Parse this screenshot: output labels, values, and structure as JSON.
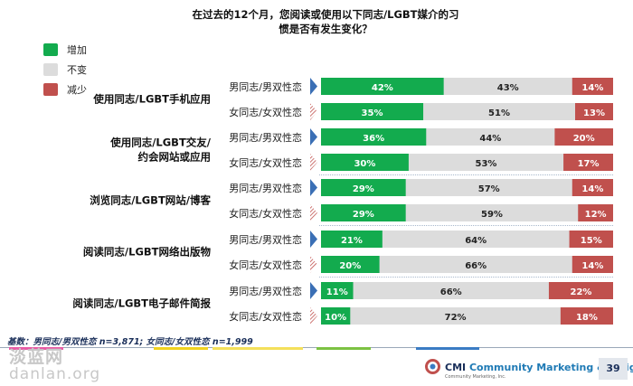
{
  "title_lines": [
    "在过去的12个月，您阅读或使用以下同志/LGBT媒介的习",
    "惯是否有发生变化？"
  ],
  "legend": [
    {
      "label": "增加",
      "color": "#13ab4e"
    },
    {
      "label": "不变",
      "color": "#dcdcdc"
    },
    {
      "label": "减少",
      "color": "#c0504d"
    }
  ],
  "chart_data": {
    "type": "bar",
    "stacked": true,
    "orientation": "horizontal",
    "percent_scale": [
      0,
      100
    ],
    "series": [
      {
        "name": "增加",
        "color": "#13ab4e"
      },
      {
        "name": "不变",
        "color": "#dcdcdc"
      },
      {
        "name": "减少",
        "color": "#c0504d"
      }
    ],
    "groups": [
      {
        "label": "使用同志/LGBT手机应用",
        "rows": [
          {
            "label": "男同志/男双性恋",
            "values": [
              42,
              43,
              14
            ],
            "value_labels": [
              "42%",
              "43%",
              "14%"
            ]
          },
          {
            "label": "女同志/女双性恋",
            "values": [
              35,
              51,
              13
            ],
            "value_labels": [
              "35%",
              "51%",
              "13%"
            ]
          }
        ]
      },
      {
        "label": "使用同志/LGBT交友/约会网站或应用",
        "label_lines": [
          "使用同志/LGBT交友/",
          "约会网站或应用"
        ],
        "rows": [
          {
            "label": "男同志/男双性恋",
            "values": [
              36,
              44,
              20
            ],
            "value_labels": [
              "36%",
              "44%",
              "20%"
            ]
          },
          {
            "label": "女同志/女双性恋",
            "values": [
              30,
              53,
              17
            ],
            "value_labels": [
              "30%",
              "53%",
              "17%"
            ]
          }
        ]
      },
      {
        "label": "浏览同志/LGBT网站/博客",
        "rows": [
          {
            "label": "男同志/男双性恋",
            "values": [
              29,
              57,
              14
            ],
            "value_labels": [
              "29%",
              "57%",
              "14%"
            ]
          },
          {
            "label": "女同志/女双性恋",
            "values": [
              29,
              59,
              12
            ],
            "value_labels": [
              "29%",
              "59%",
              "12%"
            ]
          }
        ]
      },
      {
        "label": "阅读同志/LGBT网络出版物",
        "rows": [
          {
            "label": "男同志/男双性恋",
            "values": [
              21,
              64,
              15
            ],
            "value_labels": [
              "21%",
              "64%",
              "15%"
            ]
          },
          {
            "label": "女同志/女双性恋",
            "values": [
              20,
              66,
              14
            ],
            "value_labels": [
              "20%",
              "66%",
              "14%"
            ]
          }
        ]
      },
      {
        "label": "阅读同志/LGBT电子邮件简报",
        "rows": [
          {
            "label": "男同志/男双性恋",
            "values": [
              11,
              66,
              22
            ],
            "value_labels": [
              "11%",
              "66%",
              "22%"
            ]
          },
          {
            "label": "女同志/女双性恋",
            "values": [
              10,
              72,
              18
            ],
            "value_labels": [
              "10%",
              "72%",
              "18%"
            ]
          }
        ]
      }
    ]
  },
  "base_note": "基数：男同志/男双性恋 n=3,871; 女同志/女双性恋 n=1,999",
  "watermark_lines": [
    "淡蓝网",
    "danlan.org"
  ],
  "footer": {
    "logo_text_cmi": "CMI",
    "logo_text_rest": " Community Marketing & Insights",
    "logo_sub": "Community Marketing, Inc.",
    "page_number": "39"
  },
  "colors": {
    "male_marker": "#3a6fb5",
    "female_marker": "#c0504d",
    "bar_track": "#dcdcdc"
  }
}
